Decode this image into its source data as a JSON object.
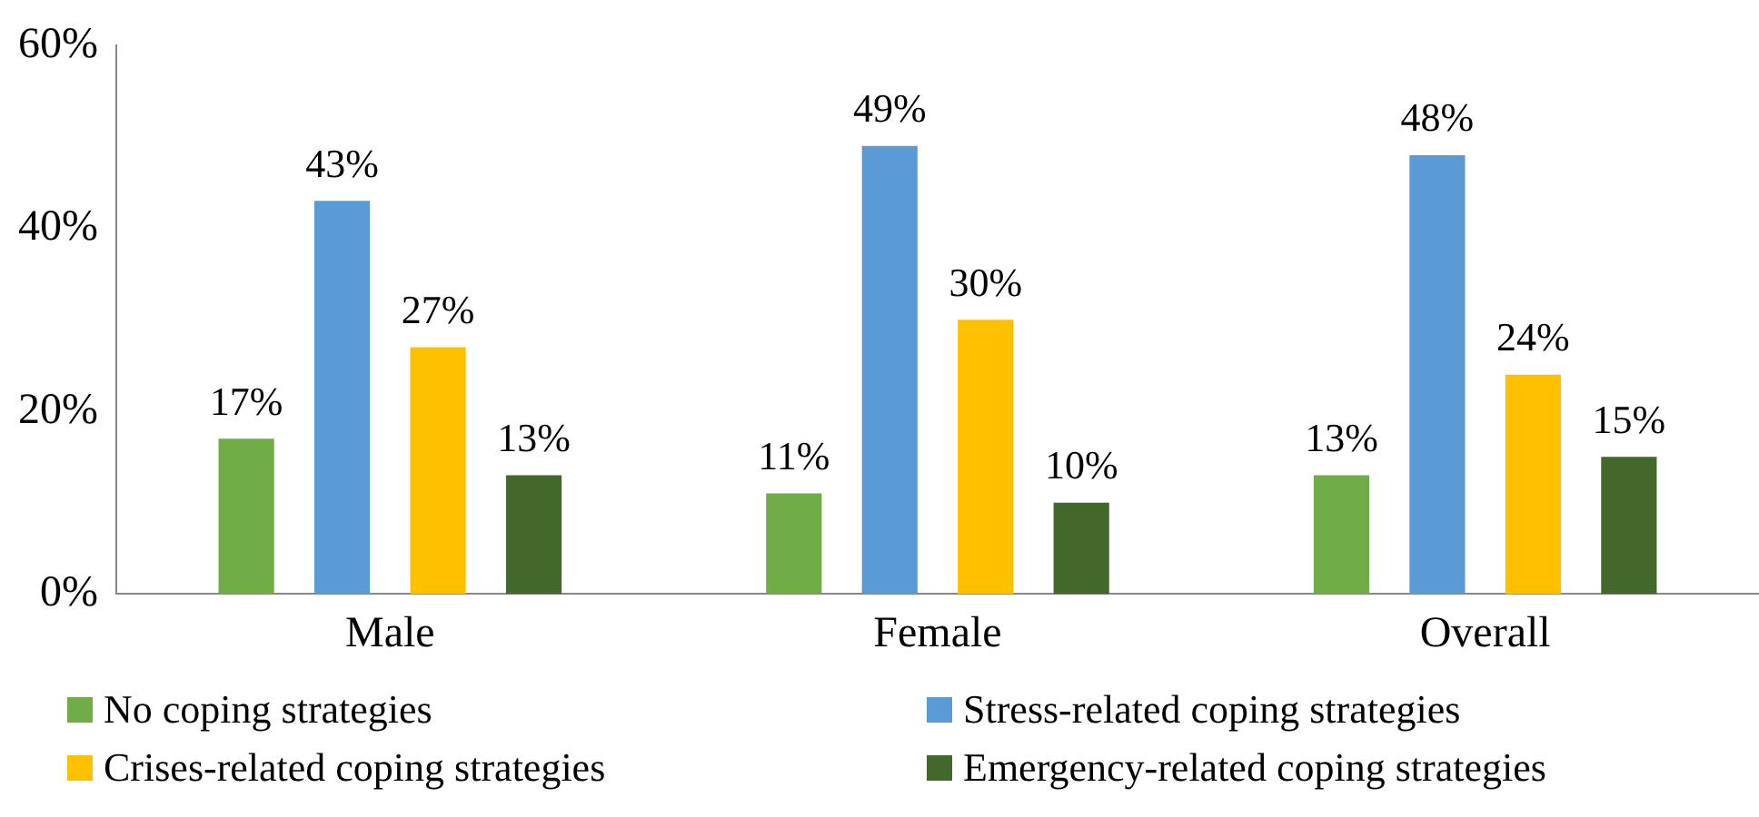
{
  "chart_data": {
    "type": "bar",
    "categories": [
      "Male",
      "Female",
      "Overall"
    ],
    "series": [
      {
        "name": "No coping strategies",
        "color": "#70ad47",
        "values": [
          17,
          11,
          13
        ],
        "value_labels": [
          "17%",
          "11%",
          "13%"
        ]
      },
      {
        "name": "Stress-related coping strategies",
        "color": "#5b9bd5",
        "values": [
          43,
          49,
          48
        ],
        "value_labels": [
          "43%",
          "49%",
          "48%"
        ]
      },
      {
        "name": "Crises-related coping strategies",
        "color": "#ffc000",
        "values": [
          27,
          30,
          24
        ],
        "value_labels": [
          "27%",
          "30%",
          "24%"
        ]
      },
      {
        "name": "Emergency-related coping strategies",
        "color": "#43682b",
        "values": [
          13,
          10,
          15
        ],
        "value_labels": [
          "13%",
          "10%",
          "15%"
        ]
      }
    ],
    "ylim": [
      0,
      60
    ],
    "yticks": [
      {
        "value": 0,
        "label": "0%"
      },
      {
        "value": 20,
        "label": "20%"
      },
      {
        "value": 40,
        "label": "40%"
      },
      {
        "value": 60,
        "label": "60%"
      }
    ],
    "grid": false,
    "legend": "bottom"
  }
}
